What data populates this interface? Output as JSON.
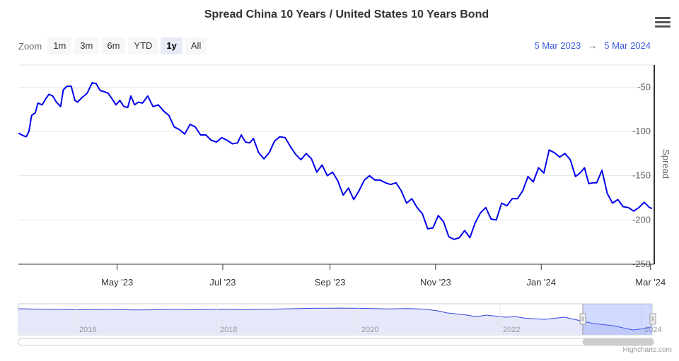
{
  "chart_data": {
    "type": "line",
    "title": "Spread China 10 Years / United States 10 Years Bond",
    "ylabel": "Spread",
    "ylim": [
      -250,
      -25
    ],
    "y_ticks": [
      -50,
      -100,
      -150,
      -200,
      -250
    ],
    "x_ticks": [
      "May '23",
      "Jul '23",
      "Sep '23",
      "Nov '23",
      "Jan '24",
      "Mar '24"
    ],
    "x_tick_months": [
      1.87,
      3.87,
      5.9,
      7.9,
      9.9,
      11.97
    ],
    "series": [
      {
        "name": "Spread",
        "color": "#0000ee",
        "x_months": [
          0,
          0.1,
          0.15,
          0.2,
          0.25,
          0.32,
          0.37,
          0.45,
          0.52,
          0.58,
          0.65,
          0.72,
          0.8,
          0.85,
          0.92,
          1.0,
          1.07,
          1.12,
          1.2,
          1.3,
          1.4,
          1.47,
          1.55,
          1.62,
          1.7,
          1.77,
          1.85,
          1.92,
          2.0,
          2.07,
          2.13,
          2.2,
          2.27,
          2.35,
          2.45,
          2.55,
          2.65,
          2.75,
          2.85,
          2.95,
          3.05,
          3.15,
          3.25,
          3.35,
          3.45,
          3.55,
          3.65,
          3.75,
          3.85,
          3.95,
          4.05,
          4.15,
          4.22,
          4.3,
          4.38,
          4.45,
          4.55,
          4.65,
          4.75,
          4.85,
          4.95,
          5.05,
          5.15,
          5.25,
          5.35,
          5.45,
          5.55,
          5.65,
          5.75,
          5.85,
          5.95,
          6.05,
          6.15,
          6.25,
          6.35,
          6.45,
          6.55,
          6.65,
          6.75,
          6.85,
          6.95,
          7.05,
          7.15,
          7.25,
          7.35,
          7.45,
          7.55,
          7.65,
          7.75,
          7.85,
          7.95,
          8.05,
          8.15,
          8.25,
          8.35,
          8.45,
          8.55,
          8.65,
          8.75,
          8.85,
          8.95,
          9.05,
          9.15,
          9.25,
          9.35,
          9.45,
          9.55,
          9.65,
          9.75,
          9.85,
          9.95,
          10.05,
          10.15,
          10.25,
          10.35,
          10.45,
          10.55,
          10.65,
          10.72,
          10.8,
          10.88,
          10.95,
          11.05,
          11.15,
          11.25,
          11.35,
          11.45,
          11.55,
          11.65,
          11.75,
          11.85,
          11.95,
          12.0
        ],
        "values": [
          -102,
          -105,
          -106,
          -100,
          -82,
          -79,
          -68,
          -70,
          -63,
          -58,
          -60,
          -67,
          -72,
          -53,
          -49,
          -49,
          -65,
          -67,
          -62,
          -57,
          -45,
          -46,
          -54,
          -55,
          -57,
          -63,
          -70,
          -65,
          -72,
          -73,
          -60,
          -70,
          -67,
          -68,
          -60,
          -72,
          -70,
          -77,
          -82,
          -95,
          -98,
          -103,
          -92,
          -95,
          -104,
          -104,
          -110,
          -112,
          -107,
          -110,
          -114,
          -113,
          -104,
          -112,
          -113,
          -108,
          -124,
          -131,
          -124,
          -111,
          -106,
          -107,
          -117,
          -126,
          -132,
          -125,
          -131,
          -146,
          -138,
          -150,
          -146,
          -156,
          -172,
          -164,
          -177,
          -167,
          -155,
          -150,
          -155,
          -155,
          -158,
          -160,
          -158,
          -167,
          -181,
          -176,
          -186,
          -193,
          -210,
          -209,
          -195,
          -202,
          -219,
          -222,
          -220,
          -212,
          -220,
          -203,
          -192,
          -186,
          -199,
          -200,
          -181,
          -184,
          -176,
          -176,
          -167,
          -151,
          -157,
          -141,
          -147,
          -121,
          -124,
          -129,
          -125,
          -132,
          -151,
          -146,
          -141,
          -159,
          -158,
          -158,
          -144,
          -170,
          -181,
          -177,
          -185,
          -186,
          -190,
          -186,
          -180,
          -186,
          -187
        ]
      }
    ],
    "navigator": {
      "year_labels": [
        "2016",
        "2018",
        "2020",
        "2022",
        "2024"
      ],
      "values": [
        -20,
        -22,
        -24,
        -26,
        -27,
        -28,
        -30,
        -29,
        -28,
        -27,
        -28,
        -30,
        -32,
        -31,
        -30,
        -28,
        -27,
        -28,
        -30,
        -28,
        -27,
        -26,
        -27,
        -29,
        -28,
        -26,
        -24,
        -22,
        -20,
        -18,
        -16,
        -15,
        -15,
        -14,
        -15,
        -16,
        -18,
        -20,
        -22,
        -20,
        -18,
        -22,
        -28,
        -40,
        -60,
        -70,
        -80,
        -95,
        -80,
        -90,
        -100,
        -95,
        -110,
        -115,
        -120,
        -110,
        -100,
        -120,
        -140,
        -160,
        -170,
        -180,
        -200,
        -220,
        -210,
        -190
      ]
    }
  },
  "zoom": {
    "label": "Zoom",
    "buttons": [
      "1m",
      "3m",
      "6m",
      "YTD",
      "1y",
      "All"
    ],
    "active": "1y"
  },
  "range": {
    "from": "5 Mar 2023",
    "arrow": "→",
    "to": "5 Mar 2024"
  },
  "credits": "Highcharts.com",
  "menu_icon": "hamburger-menu-icon"
}
